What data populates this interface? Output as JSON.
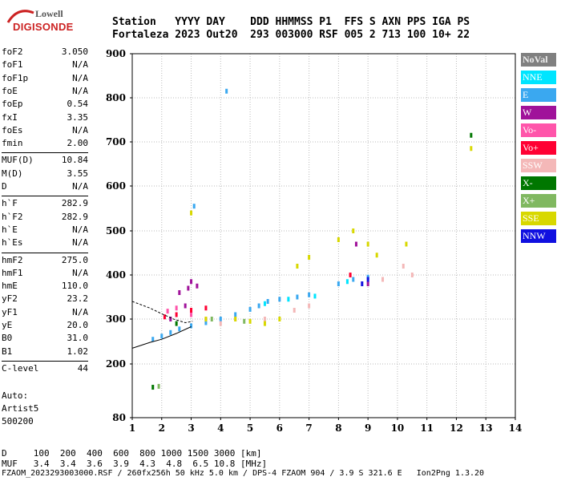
{
  "logo": {
    "line1": "Lowell",
    "line2": "DIGISONDE"
  },
  "header": {
    "row1": "Station   YYYY DAY    DDD HHMMSS P1  FFS S AXN PPS IGA PS",
    "row2": "Fortaleza 2023 Out20  293 003000 RSF 005 2 713 100 10+ 22"
  },
  "params": [
    {
      "k": "foF2",
      "v": "3.050"
    },
    {
      "k": "foF1",
      "v": "N/A"
    },
    {
      "k": "foF1p",
      "v": "N/A"
    },
    {
      "k": "foE",
      "v": "N/A"
    },
    {
      "k": "foEp",
      "v": "0.54"
    },
    {
      "k": "fxI",
      "v": "3.35"
    },
    {
      "k": "foEs",
      "v": "N/A"
    },
    {
      "k": "fmin",
      "v": "2.00"
    },
    {
      "k": "MUF(D)",
      "v": "10.84"
    },
    {
      "k": "M(D)",
      "v": "3.55"
    },
    {
      "k": "D",
      "v": "N/A"
    },
    {
      "k": "h`F",
      "v": "282.9"
    },
    {
      "k": "h`F2",
      "v": "282.9"
    },
    {
      "k": "h`E",
      "v": "N/A"
    },
    {
      "k": "h`Es",
      "v": "N/A"
    },
    {
      "k": "hmF2",
      "v": "275.0"
    },
    {
      "k": "hmF1",
      "v": "N/A"
    },
    {
      "k": "hmE",
      "v": "110.0"
    },
    {
      "k": "yF2",
      "v": "23.2"
    },
    {
      "k": "yF1",
      "v": "N/A"
    },
    {
      "k": "yE",
      "v": "20.0"
    },
    {
      "k": "B0",
      "v": "31.0"
    },
    {
      "k": "B1",
      "v": "1.02"
    },
    {
      "k": "C-level",
      "v": "44"
    }
  ],
  "auto": {
    "line1": "Auto:",
    "line2": "Artist5",
    "line3": "500200"
  },
  "legend": [
    {
      "label": "NoVal",
      "color": "#808080"
    },
    {
      "label": "NNE",
      "color": "#00e5ff"
    },
    {
      "label": "E",
      "color": "#3aa8f0"
    },
    {
      "label": "W",
      "color": "#a0129a"
    },
    {
      "label": "Vo-",
      "color": "#ff55aa"
    },
    {
      "label": "Vo+",
      "color": "#ff0033"
    },
    {
      "label": "SSW",
      "color": "#f4b8b8"
    },
    {
      "label": "X-",
      "color": "#007700"
    },
    {
      "label": "X+",
      "color": "#80b860"
    },
    {
      "label": "SSE",
      "color": "#d8d800"
    },
    {
      "label": "NNW",
      "color": "#1010e0"
    }
  ],
  "bottom": {
    "row1": "D     100  200  400  600  800 1000 1500 3000 [km]",
    "row2": "MUF   3.4  3.4  3.6  3.9  4.3  4.8  6.5 10.8 [MHz]"
  },
  "footer": "FZAOM_2023293003000.RSF / 260fx256h 50 kHz 5.0 km / DPS-4 FZAOM 904 / 3.9 S 321.6 E   Ion2Png 1.3.20",
  "chart_data": {
    "type": "scatter",
    "xlim": [
      1,
      14
    ],
    "ylim": [
      80,
      900
    ],
    "xticks": [
      "1",
      "2",
      "3",
      "4",
      "5",
      "6",
      "7",
      "8",
      "9",
      "10",
      "11",
      "12",
      "13",
      "14"
    ],
    "yticks": [
      "80",
      "200",
      "300",
      "400",
      "500",
      "600",
      "700",
      "800",
      "900"
    ],
    "grid": true,
    "series": [
      {
        "name": "E",
        "color": "#3aa8f0",
        "points": [
          [
            1.7,
            255
          ],
          [
            2.0,
            262
          ],
          [
            2.3,
            270
          ],
          [
            2.6,
            278
          ],
          [
            3.0,
            285
          ],
          [
            3.5,
            292
          ],
          [
            4.0,
            300
          ],
          [
            4.5,
            310
          ],
          [
            5.0,
            322
          ],
          [
            5.3,
            330
          ],
          [
            5.6,
            340
          ],
          [
            6.0,
            345
          ],
          [
            6.6,
            350
          ],
          [
            7.0,
            355
          ],
          [
            8.0,
            380
          ],
          [
            8.5,
            390
          ],
          [
            9.0,
            395
          ],
          [
            4.2,
            815
          ],
          [
            3.1,
            555
          ]
        ]
      },
      {
        "name": "NNE",
        "color": "#00e5ff",
        "points": [
          [
            5.5,
            335
          ],
          [
            6.3,
            345
          ],
          [
            7.2,
            352
          ],
          [
            8.3,
            385
          ]
        ]
      },
      {
        "name": "W",
        "color": "#a0129a",
        "points": [
          [
            2.3,
            300
          ],
          [
            2.6,
            360
          ],
          [
            2.9,
            370
          ],
          [
            3.0,
            385
          ],
          [
            3.2,
            375
          ],
          [
            2.8,
            330
          ],
          [
            8.6,
            470
          ],
          [
            9.0,
            380
          ]
        ]
      },
      {
        "name": "Vo-",
        "color": "#ff55aa",
        "points": [
          [
            2.2,
            318
          ],
          [
            2.5,
            325
          ],
          [
            3.0,
            310
          ],
          [
            3.5,
            300
          ]
        ]
      },
      {
        "name": "Vo+",
        "color": "#ff0033",
        "points": [
          [
            2.1,
            305
          ],
          [
            2.5,
            310
          ],
          [
            3.0,
            320
          ],
          [
            3.5,
            325
          ],
          [
            8.4,
            400
          ]
        ]
      },
      {
        "name": "SSW",
        "color": "#f4b8b8",
        "points": [
          [
            4.0,
            290
          ],
          [
            4.5,
            300
          ],
          [
            5.5,
            300
          ],
          [
            6.5,
            320
          ],
          [
            7.0,
            330
          ],
          [
            9.5,
            390
          ],
          [
            10.5,
            400
          ],
          [
            10.2,
            420
          ]
        ]
      },
      {
        "name": "X-",
        "color": "#007700",
        "points": [
          [
            1.7,
            148
          ],
          [
            12.5,
            715
          ],
          [
            2.5,
            290
          ]
        ]
      },
      {
        "name": "X+",
        "color": "#80b860",
        "points": [
          [
            1.9,
            150
          ],
          [
            3.7,
            300
          ],
          [
            4.8,
            295
          ]
        ]
      },
      {
        "name": "SSE",
        "color": "#d8d800",
        "points": [
          [
            3.0,
            540
          ],
          [
            3.5,
            300
          ],
          [
            4.5,
            300
          ],
          [
            5.0,
            295
          ],
          [
            5.5,
            290
          ],
          [
            6.0,
            300
          ],
          [
            6.6,
            420
          ],
          [
            7.0,
            440
          ],
          [
            8.0,
            480
          ],
          [
            8.5,
            500
          ],
          [
            9.0,
            470
          ],
          [
            9.3,
            445
          ],
          [
            10.3,
            470
          ],
          [
            12.5,
            685
          ]
        ]
      },
      {
        "name": "NNW",
        "color": "#1010e0",
        "points": [
          [
            9.0,
            390
          ],
          [
            8.8,
            380
          ]
        ]
      }
    ]
  }
}
